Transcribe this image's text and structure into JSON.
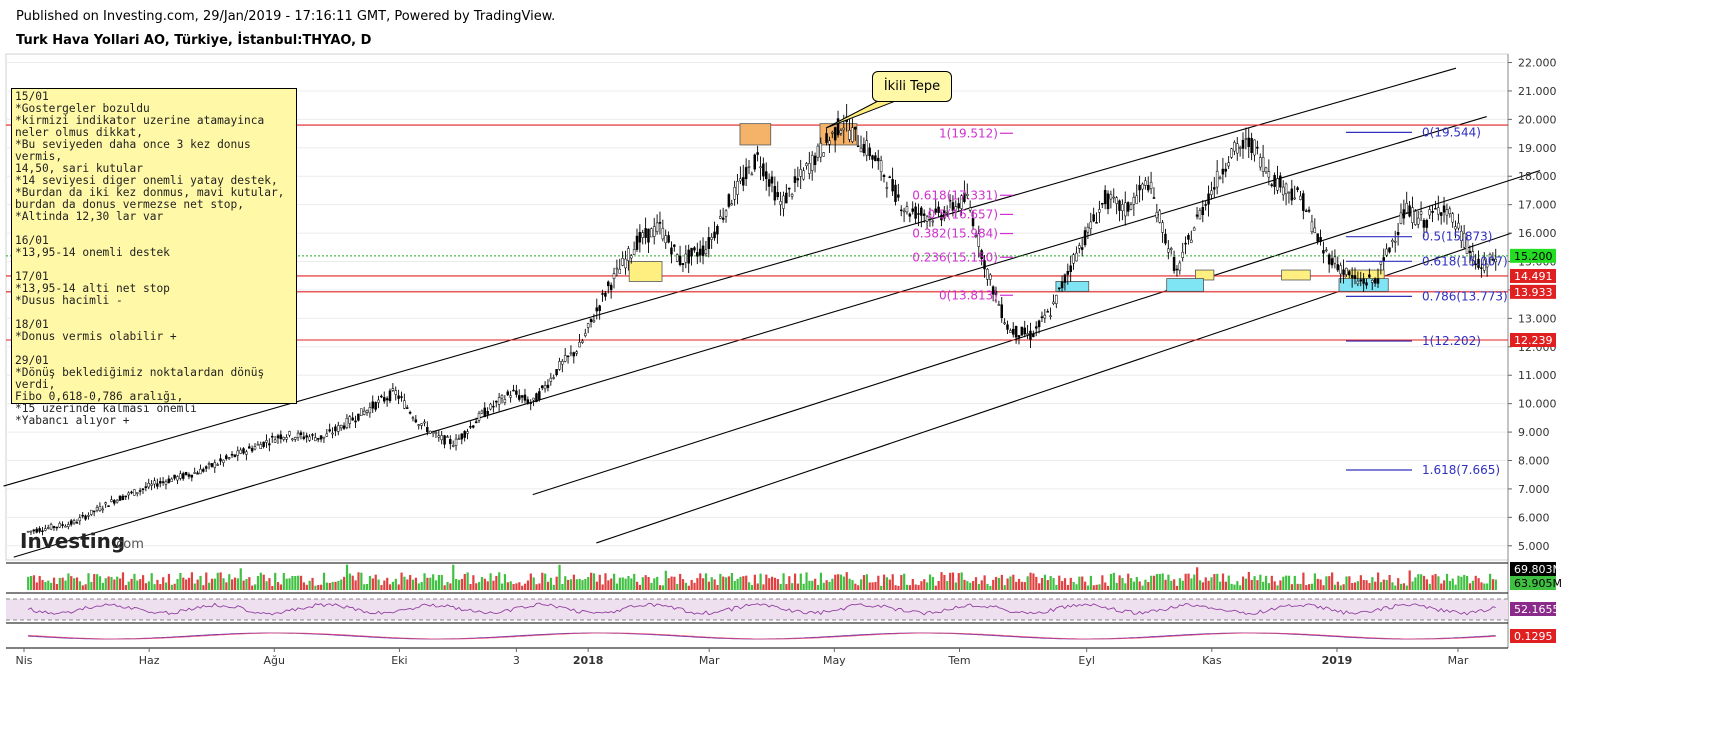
{
  "header": {
    "published": "Published on Investing.com, 29/Jan/2019 - 17:16:11 GMT, Powered by TradingView.",
    "title": "Turk Hava Yollari AO, Türkiye, İstanbul:THYAO, D"
  },
  "watermark": {
    "brand": "Investing",
    "suffix": ".com"
  },
  "callout": "İkili Tepe",
  "notes": "15/01\n*Gostergeler bozuldu\n*kirmizi indikator uzerine atamayinca\nneler olmus dikkat,\n*Bu seviyeden daha once 3 kez donus vermis,\n14,50, sari kutular\n*14 seviyesi diger onemli yatay destek,\n*Burdan da iki kez donmus, mavi kutular,\nburdan da donus vermezse net stop,\n*Altinda 12,30 lar var\n\n16/01\n*13,95-14 onemli destek\n\n17/01\n*13,95-14 alti net stop\n*Dusus hacimli -\n\n18/01\n*Donus vermis olabilir +\n\n29/01\n*Dönüş beklediğimiz noktalardan dönüş verdi,\nFibo 0,618-0,786 aralığı,\n*15 üzerinde kalması önemli\n*Yabancı alıyor +",
  "colors": {
    "red_line": "#e02020",
    "fib_blue": "#3030c0",
    "fib_magenta": "#d030d0",
    "price_green": "#22dd22",
    "volume_red": "#e04040",
    "volume_green": "#40c040",
    "rsi_band": "#efe0f0",
    "rsi_line": "#9040a0",
    "box_orange": "#f5b36a",
    "box_yellow": "#ffef80",
    "box_cyan": "#7fe4f4"
  },
  "chart_data": {
    "type": "candlestick",
    "instrument": "THYAO",
    "interval": "D",
    "y_axis": {
      "min": 4.5,
      "max": 22.3,
      "ticks": [
        "22.000",
        "21.000",
        "20.000",
        "19.000",
        "18.000",
        "17.000",
        "16.000",
        "15.000",
        "14.000",
        "13.000",
        "12.000",
        "11.000",
        "10.000",
        "9.000",
        "8.000",
        "7.000",
        "6.000",
        "5.000"
      ]
    },
    "x_ticks": [
      "Nis",
      "Haz",
      "Ağu",
      "Eki",
      "3",
      "2018",
      "Mar",
      "May",
      "Tem",
      "Eyl",
      "Kas",
      "2019",
      "Mar"
    ],
    "x_ticks_bold": [
      "2018",
      "2019"
    ],
    "price_path": [
      [
        "2017-04-03",
        5.5
      ],
      [
        "2017-04-25",
        5.8
      ],
      [
        "2017-05-15",
        6.6
      ],
      [
        "2017-06-05",
        7.2
      ],
      [
        "2017-06-25",
        7.6
      ],
      [
        "2017-07-20",
        8.4
      ],
      [
        "2017-08-05",
        8.9
      ],
      [
        "2017-08-25",
        8.8
      ],
      [
        "2017-09-20",
        10.0
      ],
      [
        "2017-09-29",
        10.4
      ],
      [
        "2017-10-10",
        9.4
      ],
      [
        "2017-10-20",
        8.8
      ],
      [
        "2017-10-28",
        8.6
      ],
      [
        "2017-11-10",
        9.6
      ],
      [
        "2017-11-25",
        10.4
      ],
      [
        "2017-12-05",
        10.0
      ],
      [
        "2017-12-18",
        11.3
      ],
      [
        "2017-12-28",
        12.0
      ],
      [
        "2018-01-10",
        14.0
      ],
      [
        "2018-01-25",
        15.7
      ],
      [
        "2018-02-05",
        16.2
      ],
      [
        "2018-02-15",
        15.0
      ],
      [
        "2018-02-28",
        15.5
      ],
      [
        "2018-03-10",
        17.0
      ],
      [
        "2018-03-25",
        18.7
      ],
      [
        "2018-04-05",
        17.0
      ],
      [
        "2018-04-20",
        18.5
      ],
      [
        "2018-05-05",
        19.9
      ],
      [
        "2018-05-20",
        18.7
      ],
      [
        "2018-06-05",
        16.8
      ],
      [
        "2018-06-20",
        16.6
      ],
      [
        "2018-07-05",
        17.2
      ],
      [
        "2018-07-15",
        14.5
      ],
      [
        "2018-07-25",
        12.6
      ],
      [
        "2018-08-05",
        12.4
      ],
      [
        "2018-08-15",
        13.3
      ],
      [
        "2018-08-25",
        15.0
      ],
      [
        "2018-09-10",
        17.2
      ],
      [
        "2018-09-20",
        16.8
      ],
      [
        "2018-10-01",
        17.8
      ],
      [
        "2018-10-15",
        14.6
      ],
      [
        "2018-10-25",
        16.5
      ],
      [
        "2018-11-10",
        18.8
      ],
      [
        "2018-11-20",
        19.2
      ],
      [
        "2018-12-01",
        17.9
      ],
      [
        "2018-12-15",
        17.2
      ],
      [
        "2018-12-25",
        15.4
      ],
      [
        "2019-01-10",
        14.3
      ],
      [
        "2019-01-20",
        14.3
      ],
      [
        "2019-02-03",
        16.8
      ],
      [
        "2019-02-13",
        16.4
      ],
      [
        "2019-02-22",
        17.0
      ],
      [
        "2019-03-05",
        15.6
      ],
      [
        "2019-03-12",
        14.7
      ],
      [
        "2019-03-20",
        15.2
      ]
    ],
    "last_price": "15.200",
    "horizontal_levels": [
      {
        "label": "14.491",
        "value": 14.491,
        "color": "#e02020"
      },
      {
        "label": "13.933",
        "value": 13.933,
        "color": "#e02020"
      },
      {
        "label": "12.239",
        "value": 12.239,
        "color": "#e02020"
      },
      {
        "value": 19.8,
        "color": "#e02020"
      }
    ],
    "fibonacci_recent": [
      {
        "label": "0(19.544)",
        "value": 19.544
      },
      {
        "label": "0.5(15.873)",
        "value": 15.873
      },
      {
        "label": "0.618(15.007)",
        "value": 15.007
      },
      {
        "label": "0.786(13.773)",
        "value": 13.773
      },
      {
        "label": "1(12.202)",
        "value": 12.202
      },
      {
        "label": "1.618(7.665)",
        "value": 7.665
      }
    ],
    "fibonacci_earlier": [
      {
        "label": "1(19.512)",
        "value": 19.512
      },
      {
        "label": "0.618(17.331)",
        "value": 17.331
      },
      {
        "label": "0.5(16.657)",
        "value": 16.657
      },
      {
        "label": "0.382(15.984)",
        "value": 15.984
      },
      {
        "label": "0.236(15.150)",
        "value": 15.15
      },
      {
        "label": "0(13.813)",
        "value": 13.813
      }
    ],
    "trend_channels": [
      {
        "from": [
          "2017-03-22",
          7.1
        ],
        "to": [
          "2019-02-28",
          21.8
        ]
      },
      {
        "from": [
          "2017-03-27",
          4.6
        ],
        "to": [
          "2019-03-15",
          20.1
        ]
      },
      {
        "from": [
          "2017-12-05",
          6.8
        ],
        "to": [
          "2019-04-10",
          18.2
        ]
      },
      {
        "from": [
          "2018-01-05",
          5.1
        ],
        "to": [
          "2019-03-27",
          16.0
        ]
      }
    ],
    "volume_panel": {
      "labels": [
        "69.803M",
        "63.905M"
      ]
    },
    "rsi_panel": {
      "value_label": "52.1655"
    },
    "macd_panel": {
      "value_label": "0.1295"
    }
  }
}
